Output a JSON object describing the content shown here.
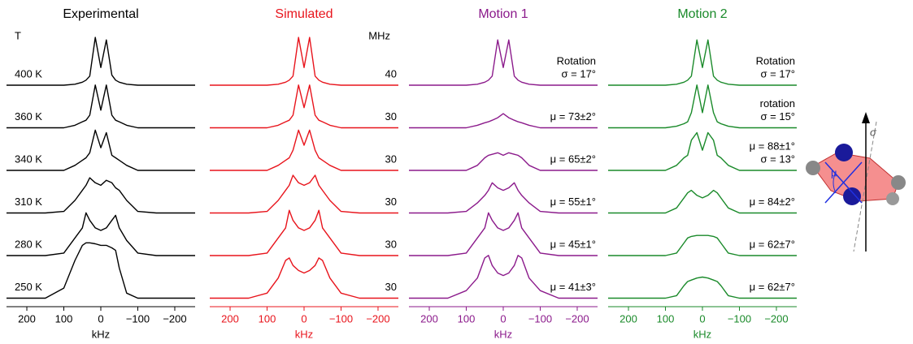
{
  "chart_data": [
    {
      "type": "line",
      "title": "Experimental",
      "color": "#000000",
      "row_header": "T",
      "axis_label": "kHz",
      "x": [
        240,
        150,
        100,
        70,
        50,
        40,
        30,
        15,
        0,
        -15,
        -30,
        -40,
        -50,
        -70,
        -100,
        -150,
        -240
      ],
      "xlim": [
        255,
        -255
      ],
      "xticks": [
        200,
        100,
        0,
        {
          "value": -100,
          "label": "−100"
        },
        {
          "value": -200,
          "label": "−200"
        }
      ],
      "series": [
        {
          "label": [
            "400 K"
          ],
          "values": [
            0,
            0,
            0,
            0.02,
            0.06,
            0.1,
            0.18,
            0.95,
            0.35,
            0.9,
            0.2,
            0.1,
            0.06,
            0.02,
            0,
            0,
            0
          ]
        },
        {
          "label": [
            "360 K"
          ],
          "values": [
            0,
            0,
            0,
            0.05,
            0.12,
            0.15,
            0.25,
            0.85,
            0.35,
            0.85,
            0.25,
            0.15,
            0.12,
            0.05,
            0,
            0,
            0
          ]
        },
        {
          "label": [
            "340 K"
          ],
          "values": [
            0,
            0,
            0,
            0.1,
            0.2,
            0.25,
            0.35,
            0.8,
            0.45,
            0.75,
            0.3,
            0.25,
            0.2,
            0.1,
            0,
            0,
            0
          ]
        },
        {
          "label": [
            "310 K"
          ],
          "values": [
            0,
            0,
            0.03,
            0.25,
            0.45,
            0.55,
            0.7,
            0.6,
            0.55,
            0.65,
            0.6,
            0.5,
            0.45,
            0.25,
            0.03,
            0,
            0
          ]
        },
        {
          "label": [
            "280 K"
          ],
          "values": [
            0,
            0,
            0.05,
            0.35,
            0.55,
            0.85,
            0.7,
            0.55,
            0.5,
            0.55,
            0.7,
            0.8,
            0.55,
            0.3,
            0.05,
            0,
            0
          ]
        },
        {
          "label": [
            "250 K"
          ],
          "values": [
            0,
            0,
            0.2,
            0.75,
            1.05,
            1.1,
            1.1,
            1.08,
            1.05,
            1.05,
            1.0,
            0.95,
            0.6,
            0.1,
            0,
            0,
            0
          ]
        }
      ]
    },
    {
      "type": "line",
      "title": "Simulated",
      "color": "#e8141c",
      "row_header": "MHz",
      "axis_label": "kHz",
      "x": [
        240,
        150,
        100,
        70,
        50,
        40,
        30,
        15,
        0,
        -15,
        -30,
        -40,
        -50,
        -70,
        -100,
        -150,
        -240
      ],
      "xlim": [
        255,
        -255
      ],
      "xticks": [
        200,
        100,
        0,
        {
          "value": -100,
          "label": "−100"
        },
        {
          "value": -200,
          "label": "−200"
        }
      ],
      "series": [
        {
          "label": [
            "40"
          ],
          "values": [
            0,
            0,
            0,
            0.02,
            0.06,
            0.1,
            0.18,
            0.95,
            0.35,
            0.95,
            0.18,
            0.1,
            0.06,
            0.02,
            0,
            0,
            0
          ]
        },
        {
          "label": [
            "30"
          ],
          "values": [
            0,
            0,
            0,
            0.05,
            0.12,
            0.15,
            0.25,
            0.85,
            0.4,
            0.85,
            0.25,
            0.15,
            0.12,
            0.05,
            0,
            0,
            0
          ]
        },
        {
          "label": [
            "30"
          ],
          "values": [
            0,
            0,
            0,
            0.1,
            0.2,
            0.25,
            0.4,
            0.8,
            0.5,
            0.8,
            0.4,
            0.25,
            0.2,
            0.1,
            0,
            0,
            0
          ]
        },
        {
          "label": [
            "30"
          ],
          "values": [
            0,
            0,
            0.03,
            0.25,
            0.45,
            0.55,
            0.75,
            0.6,
            0.55,
            0.6,
            0.75,
            0.55,
            0.45,
            0.25,
            0.03,
            0,
            0
          ]
        },
        {
          "label": [
            "30"
          ],
          "values": [
            0,
            0,
            0.05,
            0.35,
            0.55,
            0.9,
            0.7,
            0.55,
            0.5,
            0.55,
            0.7,
            0.9,
            0.55,
            0.35,
            0.05,
            0,
            0
          ]
        },
        {
          "label": [
            "30"
          ],
          "values": [
            0,
            0,
            0.1,
            0.4,
            0.75,
            0.8,
            0.65,
            0.55,
            0.5,
            0.55,
            0.65,
            0.8,
            0.75,
            0.4,
            0.1,
            0,
            0
          ]
        }
      ]
    },
    {
      "type": "line",
      "title": "Motion 1",
      "color": "#8b1a8b",
      "axis_label": "kHz",
      "x": [
        240,
        150,
        100,
        70,
        50,
        40,
        30,
        15,
        0,
        -15,
        -30,
        -40,
        -50,
        -70,
        -100,
        -150,
        -240
      ],
      "xlim": [
        255,
        -255
      ],
      "xticks": [
        200,
        100,
        0,
        {
          "value": -100,
          "label": "−100"
        },
        {
          "value": -200,
          "label": "−200"
        }
      ],
      "series": [
        {
          "label": [
            "Rotation",
            "σ = 17°"
          ],
          "values": [
            0,
            0,
            0,
            0.02,
            0.06,
            0.1,
            0.18,
            0.9,
            0.35,
            0.9,
            0.18,
            0.1,
            0.06,
            0.02,
            0,
            0,
            0
          ]
        },
        {
          "label": [
            "μ = 73±2°"
          ],
          "values": [
            0,
            0,
            0,
            0.05,
            0.1,
            0.12,
            0.15,
            0.2,
            0.28,
            0.2,
            0.15,
            0.12,
            0.1,
            0.05,
            0,
            0,
            0
          ]
        },
        {
          "label": [
            "μ = 65±2°"
          ],
          "values": [
            0,
            0,
            0,
            0.1,
            0.25,
            0.3,
            0.32,
            0.35,
            0.3,
            0.35,
            0.32,
            0.3,
            0.25,
            0.1,
            0,
            0,
            0
          ]
        },
        {
          "label": [
            "μ = 55±1°"
          ],
          "values": [
            0,
            0,
            0.03,
            0.2,
            0.35,
            0.45,
            0.6,
            0.5,
            0.45,
            0.5,
            0.6,
            0.45,
            0.35,
            0.2,
            0.03,
            0,
            0
          ]
        },
        {
          "label": [
            "μ = 45±1°"
          ],
          "values": [
            0,
            0,
            0.05,
            0.35,
            0.55,
            0.85,
            0.7,
            0.55,
            0.5,
            0.55,
            0.7,
            0.85,
            0.55,
            0.35,
            0.05,
            0,
            0
          ]
        },
        {
          "label": [
            "μ = 41±3°"
          ],
          "values": [
            0,
            0,
            0.15,
            0.4,
            0.8,
            0.85,
            0.65,
            0.5,
            0.45,
            0.5,
            0.65,
            0.85,
            0.8,
            0.4,
            0.15,
            0,
            0
          ]
        }
      ]
    },
    {
      "type": "line",
      "title": "Motion 2",
      "color": "#1a8a2a",
      "axis_label": "kHz",
      "x": [
        240,
        150,
        100,
        70,
        50,
        40,
        30,
        15,
        0,
        -15,
        -30,
        -40,
        -50,
        -70,
        -100,
        -150,
        -240
      ],
      "xlim": [
        255,
        -255
      ],
      "xticks": [
        200,
        100,
        0,
        {
          "value": -100,
          "label": "−100"
        },
        {
          "value": -200,
          "label": "−200"
        }
      ],
      "series": [
        {
          "label": [
            "Rotation",
            "σ = 17°"
          ],
          "values": [
            0,
            0,
            0,
            0.02,
            0.06,
            0.1,
            0.18,
            0.9,
            0.35,
            0.9,
            0.18,
            0.1,
            0.06,
            0.02,
            0,
            0,
            0
          ]
        },
        {
          "label": [
            "rotation",
            "σ = 15°"
          ],
          "values": [
            0,
            0,
            0,
            0.03,
            0.08,
            0.12,
            0.3,
            0.85,
            0.3,
            0.85,
            0.3,
            0.12,
            0.08,
            0.03,
            0,
            0,
            0
          ]
        },
        {
          "label": [
            "μ = 88±1°",
            "σ = 13°"
          ],
          "values": [
            0,
            0,
            0,
            0.1,
            0.25,
            0.3,
            0.6,
            0.75,
            0.4,
            0.75,
            0.6,
            0.3,
            0.25,
            0.1,
            0,
            0,
            0
          ]
        },
        {
          "label": [
            "μ = 84±2°"
          ],
          "values": [
            0,
            0,
            0,
            0.1,
            0.3,
            0.4,
            0.45,
            0.35,
            0.3,
            0.35,
            0.45,
            0.4,
            0.3,
            0.1,
            0,
            0,
            0
          ]
        },
        {
          "label": [
            "μ = 62±7°"
          ],
          "values": [
            0,
            0,
            0,
            0.05,
            0.25,
            0.35,
            0.38,
            0.4,
            0.4,
            0.4,
            0.38,
            0.35,
            0.25,
            0.05,
            0,
            0,
            0
          ]
        },
        {
          "label": [
            "μ = 62±7°"
          ],
          "values": [
            0,
            0,
            0,
            0.05,
            0.25,
            0.33,
            0.36,
            0.4,
            0.42,
            0.4,
            0.36,
            0.33,
            0.25,
            0.05,
            0,
            0,
            0
          ]
        }
      ]
    }
  ],
  "diagram_labels": {
    "angle": "μ",
    "tilt": "σ"
  }
}
